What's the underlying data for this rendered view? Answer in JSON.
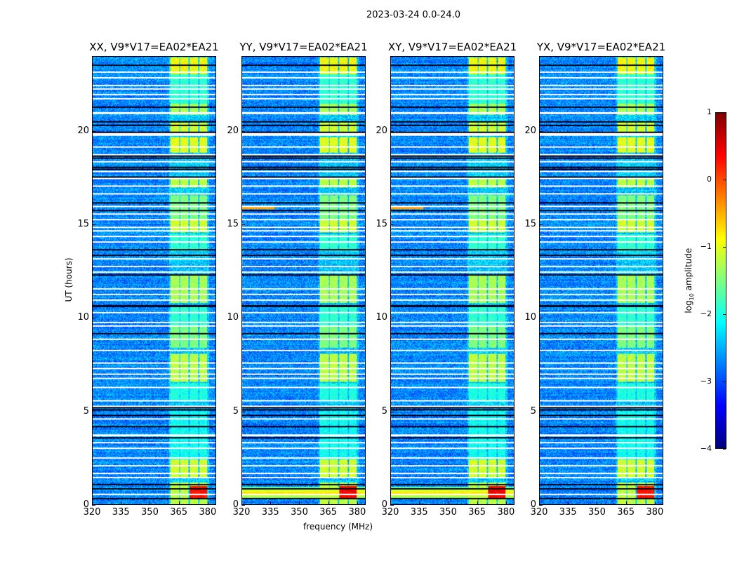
{
  "chart_data": {
    "type": "heatmap",
    "title": "2023-03-24 0.0-24.0",
    "xlabel": "frequency (MHz)",
    "ylabel": "UT (hours)",
    "xlim": [
      320,
      384.4
    ],
    "ylim": [
      0,
      24
    ],
    "xticks": [
      320,
      335,
      350,
      365,
      380
    ],
    "yticks": [
      0,
      5,
      10,
      15,
      20
    ],
    "colorbar": {
      "label_main": "log",
      "label_sub": "10",
      "label_rest": " amplitude",
      "range": [
        -4,
        1
      ],
      "ticks": [
        1,
        0,
        -1,
        -2,
        -3,
        -4
      ],
      "tick_labels": [
        "1",
        "0",
        "−1",
        "−2",
        "−3",
        "−4"
      ],
      "colormap": "jet"
    },
    "background_level": -2.7,
    "rfi_subbands_mhz": [
      [
        360.7,
        365.3
      ],
      [
        365.8,
        370.2
      ],
      [
        370.8,
        375.2
      ],
      [
        375.7,
        380.0
      ]
    ],
    "rfi_active_ut": [
      [
        0.0,
        1.2,
        -1.2
      ],
      [
        1.4,
        2.4,
        -1.1
      ],
      [
        2.4,
        5.0,
        -2.1
      ],
      [
        5.6,
        6.5,
        -2.0
      ],
      [
        6.6,
        8.1,
        -1.2
      ],
      [
        8.4,
        9.6,
        -1.5
      ],
      [
        9.6,
        10.6,
        -1.9
      ],
      [
        10.8,
        12.3,
        -1.3
      ],
      [
        13.6,
        14.5,
        -1.9
      ],
      [
        14.6,
        15.3,
        -1.1
      ],
      [
        15.3,
        16.6,
        -1.5
      ],
      [
        17.0,
        17.5,
        -1.2
      ],
      [
        18.9,
        19.7,
        -1.0
      ],
      [
        20.0,
        20.5,
        -1.1
      ],
      [
        20.9,
        21.5,
        -1.3
      ],
      [
        21.5,
        23.1,
        -1.9
      ],
      [
        23.1,
        24.0,
        -0.9
      ]
    ],
    "flagged_white_ut": [
      0.55,
      1.45,
      1.7,
      2.1,
      2.5,
      3.05,
      3.35,
      3.7,
      3.75,
      4.6,
      5.3,
      5.6,
      6.3,
      6.8,
      7.0,
      7.3,
      7.6,
      8.3,
      8.9,
      9.6,
      9.8,
      10.3,
      11.0,
      11.3,
      11.6,
      12.5,
      12.8,
      13.2,
      14.1,
      14.4,
      14.7,
      14.9,
      15.3,
      15.6,
      16.0,
      16.7,
      17.1,
      17.5,
      17.9,
      18.4,
      18.8,
      19.2,
      19.85,
      19.9,
      21.0,
      21.05,
      21.8,
      22.0,
      22.3,
      22.5,
      22.9,
      23.2
    ],
    "flagged_black_ut": [
      0.35,
      0.85,
      1.1,
      3.6,
      4.2,
      4.8,
      5.1,
      5.2,
      9.2,
      10.65,
      10.7,
      12.35,
      13.4,
      13.7,
      15.8,
      16.2,
      17.6,
      18.0,
      18.1,
      18.6,
      18.7,
      20.0,
      20.35,
      20.55,
      21.35,
      23.6
    ],
    "panels": [
      {
        "title": "XX, V9*V17=EA02*EA21",
        "strong_low_band": false,
        "red_block_level": 0.3,
        "streak_16h": false
      },
      {
        "title": "YY, V9*V17=EA02*EA21",
        "strong_low_band": true,
        "red_block_level": 0.4,
        "streak_16h": true
      },
      {
        "title": "XY, V9*V17=EA02*EA21",
        "strong_low_band": true,
        "red_block_level": 0.4,
        "streak_16h": true
      },
      {
        "title": "YX, V9*V17=EA02*EA21",
        "strong_low_band": false,
        "red_block_level": 0.3,
        "streak_16h": false
      }
    ]
  }
}
